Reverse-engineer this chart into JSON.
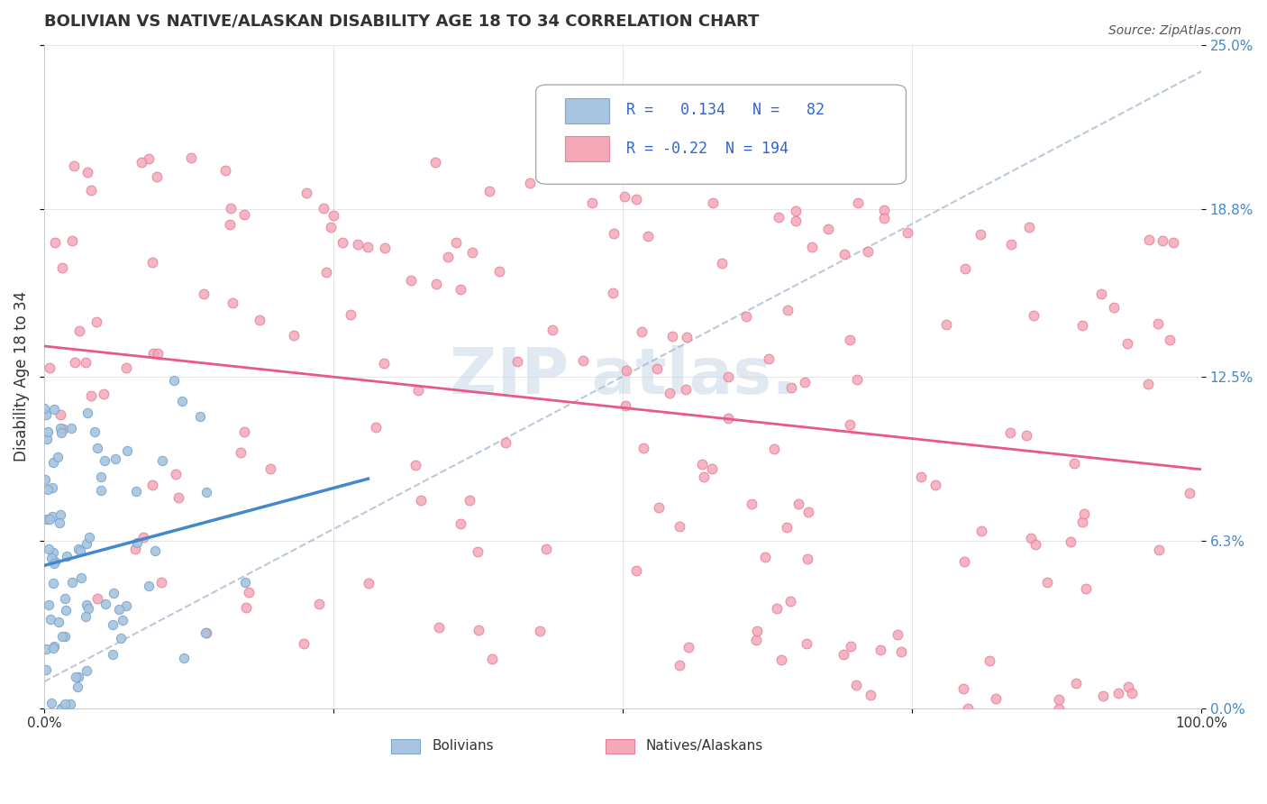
{
  "title": "BOLIVIAN VS NATIVE/ALASKAN DISABILITY AGE 18 TO 34 CORRELATION CHART",
  "source_text": "Source: ZipAtlas.com",
  "xlabel": "",
  "ylabel": "Disability Age 18 to 34",
  "xlim": [
    0,
    1
  ],
  "ylim": [
    0,
    0.25
  ],
  "yticks": [
    0.0,
    0.063,
    0.125,
    0.188,
    0.25
  ],
  "ytick_labels": [
    "0.0%",
    "6.3%",
    "12.5%",
    "18.8%",
    "25.0%"
  ],
  "xticks": [
    0.0,
    0.25,
    0.5,
    0.75,
    1.0
  ],
  "xtick_labels": [
    "0.0%",
    "",
    "",
    "",
    "100.0%"
  ],
  "blue_R": 0.134,
  "blue_N": 82,
  "pink_R": -0.22,
  "pink_N": 194,
  "blue_color": "#a8c4e0",
  "pink_color": "#f4a8b8",
  "blue_marker_edge": "#7ba8cc",
  "pink_marker_edge": "#e8809a",
  "blue_line_color": "#4488cc",
  "pink_line_color": "#e85888",
  "title_color": "#333333",
  "background_color": "#ffffff"
}
